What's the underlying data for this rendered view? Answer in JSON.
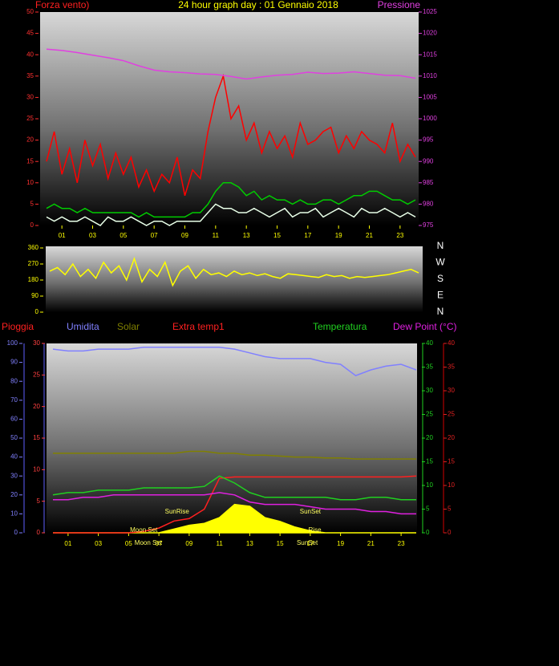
{
  "chart_data": [
    {
      "type": "line",
      "title": "24 hour graph day : 01 Gennaio 2018",
      "y_label": "Forza vento)",
      "y2_label": "Pressione",
      "xlim": [
        0,
        24
      ],
      "xticks": [
        {
          "value": 1,
          "label": "01"
        },
        {
          "value": 3,
          "label": "03"
        },
        {
          "value": 5,
          "label": "05"
        },
        {
          "value": 7,
          "label": "07"
        },
        {
          "value": 9,
          "label": "09"
        },
        {
          "value": 11,
          "label": "11"
        },
        {
          "value": 13,
          "label": "13"
        },
        {
          "value": 15,
          "label": "15"
        },
        {
          "value": 17,
          "label": "17"
        },
        {
          "value": 19,
          "label": "19"
        },
        {
          "value": 21,
          "label": "21"
        },
        {
          "value": 23,
          "label": "23"
        }
      ],
      "ylim": [
        0,
        50
      ],
      "yticks": [
        0,
        5,
        10,
        15,
        20,
        25,
        30,
        35,
        40,
        45,
        50
      ],
      "y2lim": [
        975,
        1025
      ],
      "y2ticks": [
        975,
        980,
        985,
        990,
        995,
        1000,
        1005,
        1010,
        1015,
        1020,
        1025
      ],
      "series": [
        {
          "color": "#ff0000",
          "x": [
            0,
            0.5,
            1,
            1.5,
            2,
            2.5,
            3,
            3.5,
            4,
            4.5,
            5,
            5.5,
            6,
            6.5,
            7,
            7.5,
            8,
            8.5,
            9,
            9.5,
            10,
            10.5,
            11,
            11.5,
            12,
            12.5,
            13,
            13.5,
            14,
            14.5,
            15,
            15.5,
            16,
            16.5,
            17,
            17.5,
            18,
            18.5,
            19,
            19.5,
            20,
            20.5,
            21,
            21.5,
            22,
            22.5,
            23,
            23.5,
            24
          ],
          "values": [
            15,
            22,
            12,
            18,
            10,
            20,
            14,
            19,
            11,
            17,
            12,
            16,
            9,
            13,
            8,
            12,
            10,
            16,
            7,
            13,
            11,
            22,
            30,
            35,
            25,
            28,
            20,
            24,
            17,
            22,
            18,
            21,
            16,
            24,
            19,
            20,
            22,
            23,
            17,
            21,
            18,
            22,
            20,
            19,
            17,
            24,
            15,
            19,
            16
          ]
        },
        {
          "color": "#e8ffe8",
          "x": [
            0,
            0.5,
            1,
            1.5,
            2,
            2.5,
            3,
            3.5,
            4,
            4.5,
            5,
            5.5,
            6,
            6.5,
            7,
            7.5,
            8,
            8.5,
            9,
            9.5,
            10,
            10.5,
            11,
            11.5,
            12,
            12.5,
            13,
            13.5,
            14,
            14.5,
            15,
            15.5,
            16,
            16.5,
            17,
            17.5,
            18,
            18.5,
            19,
            19.5,
            20,
            20.5,
            21,
            21.5,
            22,
            22.5,
            23,
            23.5,
            24
          ],
          "values": [
            2,
            1,
            2,
            1,
            1,
            2,
            1,
            0,
            2,
            1,
            1,
            2,
            1,
            0,
            1,
            1,
            0,
            1,
            1,
            1,
            1,
            3,
            5,
            4,
            4,
            3,
            3,
            4,
            3,
            2,
            3,
            4,
            2,
            3,
            3,
            4,
            2,
            3,
            4,
            3,
            2,
            4,
            3,
            3,
            4,
            3,
            2,
            3,
            2
          ]
        },
        {
          "color": "#00cc00",
          "x": [
            0,
            0.5,
            1,
            1.5,
            2,
            2.5,
            3,
            3.5,
            4,
            4.5,
            5,
            5.5,
            6,
            6.5,
            7,
            7.5,
            8,
            8.5,
            9,
            9.5,
            10,
            10.5,
            11,
            11.5,
            12,
            12.5,
            13,
            13.5,
            14,
            14.5,
            15,
            15.5,
            16,
            16.5,
            17,
            17.5,
            18,
            18.5,
            19,
            19.5,
            20,
            20.5,
            21,
            21.5,
            22,
            22.5,
            23,
            23.5,
            24
          ],
          "values": [
            4,
            5,
            4,
            4,
            3,
            4,
            3,
            3,
            3,
            3,
            3,
            3,
            2,
            3,
            2,
            2,
            2,
            2,
            2,
            3,
            3,
            5,
            8,
            10,
            10,
            9,
            7,
            8,
            6,
            7,
            6,
            6,
            5,
            6,
            5,
            5,
            6,
            6,
            5,
            6,
            7,
            7,
            8,
            8,
            7,
            6,
            6,
            5,
            6
          ]
        },
        {
          "color": "#e040e0",
          "axis": "y2",
          "x": [
            0,
            1,
            2,
            3,
            4,
            5,
            6,
            7,
            8,
            9,
            10,
            11,
            12,
            13,
            14,
            15,
            16,
            17,
            18,
            19,
            20,
            21,
            22,
            23,
            24
          ],
          "values": [
            1016.3,
            1016,
            1015.5,
            1014.9,
            1014.3,
            1013.6,
            1012.4,
            1011.4,
            1011,
            1010.8,
            1010.5,
            1010.4,
            1009.9,
            1009.3,
            1009.8,
            1010.2,
            1010.4,
            1010.9,
            1010.6,
            1010.7,
            1011,
            1010.6,
            1010.2,
            1010.1,
            1009.5
          ]
        }
      ]
    },
    {
      "type": "line",
      "xlim": [
        0,
        24
      ],
      "ylim": [
        0,
        360
      ],
      "yticks": [
        0,
        90,
        180,
        270,
        360
      ],
      "compass_labels": [
        "N",
        "W",
        "S",
        "E",
        "N"
      ],
      "series": [
        {
          "color": "#ffff00",
          "x": [
            0,
            0.5,
            1,
            1.5,
            2,
            2.5,
            3,
            3.5,
            4,
            4.5,
            5,
            5.5,
            6,
            6.5,
            7,
            7.5,
            8,
            8.5,
            9,
            9.5,
            10,
            10.5,
            11,
            11.5,
            12,
            12.5,
            13,
            13.5,
            14,
            14.5,
            15,
            15.5,
            16,
            16.5,
            17,
            17.5,
            18,
            18.5,
            19,
            19.5,
            20,
            20.5,
            21,
            21.5,
            22,
            22.5,
            23,
            23.5,
            24
          ],
          "values": [
            230,
            250,
            210,
            270,
            200,
            240,
            190,
            280,
            220,
            260,
            180,
            300,
            170,
            240,
            200,
            280,
            150,
            230,
            260,
            190,
            240,
            210,
            220,
            200,
            230,
            210,
            220,
            205,
            215,
            200,
            190,
            215,
            210,
            205,
            200,
            195,
            210,
            200,
            205,
            190,
            200,
            195,
            200,
            205,
            210,
            220,
            230,
            240,
            220
          ]
        }
      ]
    },
    {
      "type": "line",
      "xlim": [
        0,
        24
      ],
      "xticks": [
        {
          "value": 1,
          "label": "01"
        },
        {
          "value": 3,
          "label": "03"
        },
        {
          "value": 5,
          "label": "05"
        },
        {
          "value": 7,
          "label": "07"
        },
        {
          "value": 9,
          "label": "09"
        },
        {
          "value": 11,
          "label": "11"
        },
        {
          "value": 13,
          "label": "13"
        },
        {
          "value": 15,
          "label": "15"
        },
        {
          "value": 17,
          "label": "17"
        },
        {
          "value": 19,
          "label": "19"
        },
        {
          "value": 21,
          "label": "21"
        },
        {
          "value": 23,
          "label": "23"
        }
      ],
      "y_label": "Pioggia",
      "ylim": [
        0,
        100
      ],
      "yticks": [
        0,
        10,
        20,
        30,
        40,
        50,
        60,
        70,
        80,
        90,
        100
      ],
      "y3lim": [
        0,
        30
      ],
      "y3ticks": [
        0,
        5,
        10,
        15,
        20,
        25,
        30
      ],
      "y2lim": [
        0,
        40
      ],
      "y2ticks": [
        0,
        5,
        10,
        15,
        20,
        25,
        30,
        35,
        40
      ],
      "y4lim": [
        0,
        40
      ],
      "y4ticks": [
        0,
        5,
        10,
        15,
        20,
        25,
        30,
        35,
        40
      ],
      "series": [
        {
          "color": "#ffff00",
          "area": true,
          "x": [
            0,
            1,
            2,
            3,
            4,
            5,
            6,
            7,
            8,
            9,
            10,
            11,
            12,
            13,
            14,
            15,
            16,
            17,
            18,
            19,
            20,
            21,
            22,
            23,
            24
          ],
          "values": [
            0,
            0,
            0,
            0,
            0,
            0,
            0,
            0,
            2,
            4,
            5,
            8,
            15,
            14,
            8,
            6,
            3,
            1,
            0,
            0,
            0,
            0,
            0,
            0,
            0
          ]
        },
        {
          "name": "Umidita",
          "color": "#8080ff",
          "x": [
            0,
            1,
            2,
            3,
            4,
            5,
            6,
            7,
            8,
            9,
            10,
            11,
            12,
            13,
            14,
            15,
            16,
            17,
            18,
            19,
            20,
            21,
            22,
            23,
            24
          ],
          "values": [
            97,
            96,
            96,
            97,
            97,
            97,
            98,
            98,
            98,
            98,
            98,
            98,
            97,
            95,
            93,
            92,
            92,
            92,
            90,
            89,
            83,
            86,
            88,
            89,
            86
          ]
        },
        {
          "name": "Solar",
          "color": "#808000",
          "x": [
            0,
            1,
            2,
            3,
            4,
            5,
            6,
            7,
            8,
            9,
            10,
            11,
            12,
            13,
            14,
            15,
            16,
            17,
            18,
            19,
            20,
            21,
            22,
            23,
            24
          ],
          "values": [
            42,
            42,
            42,
            42,
            42,
            42,
            42,
            42,
            42,
            43,
            43,
            42,
            42,
            41,
            41,
            40.5,
            40,
            40,
            39.5,
            39.5,
            39,
            39,
            39,
            39,
            39
          ]
        },
        {
          "name": "Extra temp1",
          "color": "#ff2020",
          "axis": "y4",
          "x": [
            0,
            1,
            2,
            3,
            4,
            5,
            6,
            7,
            8,
            9,
            10,
            11,
            12,
            13,
            14,
            15,
            16,
            17,
            18,
            19,
            20,
            21,
            22,
            23,
            24
          ],
          "values": [
            0,
            0,
            0,
            0,
            0,
            0,
            0.3,
            1,
            2.5,
            3,
            5,
            11.5,
            11.8,
            11.8,
            11.8,
            11.8,
            11.8,
            11.8,
            11.8,
            11.8,
            11.8,
            11.8,
            11.8,
            11.8,
            12
          ]
        },
        {
          "name": "Temperatura",
          "color": "#20d020",
          "axis": "y2",
          "x": [
            0,
            1,
            2,
            3,
            4,
            5,
            6,
            7,
            8,
            9,
            10,
            11,
            12,
            13,
            14,
            15,
            16,
            17,
            18,
            19,
            20,
            21,
            22,
            23,
            24
          ],
          "values": [
            8,
            8.5,
            8.5,
            9,
            9,
            9,
            9.5,
            9.5,
            9.5,
            9.5,
            9.8,
            12,
            10.5,
            8.5,
            7.5,
            7.5,
            7.5,
            7.5,
            7.5,
            7,
            7,
            7.5,
            7.5,
            7,
            7
          ]
        },
        {
          "name": "Dew Point (°C)",
          "color": "#e020e0",
          "axis": "y2",
          "x": [
            0,
            1,
            2,
            3,
            4,
            5,
            6,
            7,
            8,
            9,
            10,
            11,
            12,
            13,
            14,
            15,
            16,
            17,
            18,
            19,
            20,
            21,
            22,
            23,
            24
          ],
          "values": [
            7,
            7,
            7.5,
            7.5,
            8,
            8,
            8,
            8,
            8,
            8,
            8,
            8.5,
            8,
            6.5,
            6,
            6,
            6,
            5.5,
            5,
            5,
            5,
            4.5,
            4.5,
            4,
            4
          ]
        }
      ],
      "annotations": [
        {
          "text": "Moon Set",
          "x": 6
        },
        {
          "text": "SunRise",
          "x": 8.2
        },
        {
          "text": "SunSet",
          "x": 17
        },
        {
          "text": "Rise",
          "x": 17.3
        },
        {
          "text": "Moon Set",
          "x": 6.3
        },
        {
          "text": "SunSet",
          "x": 16.8
        }
      ]
    }
  ]
}
